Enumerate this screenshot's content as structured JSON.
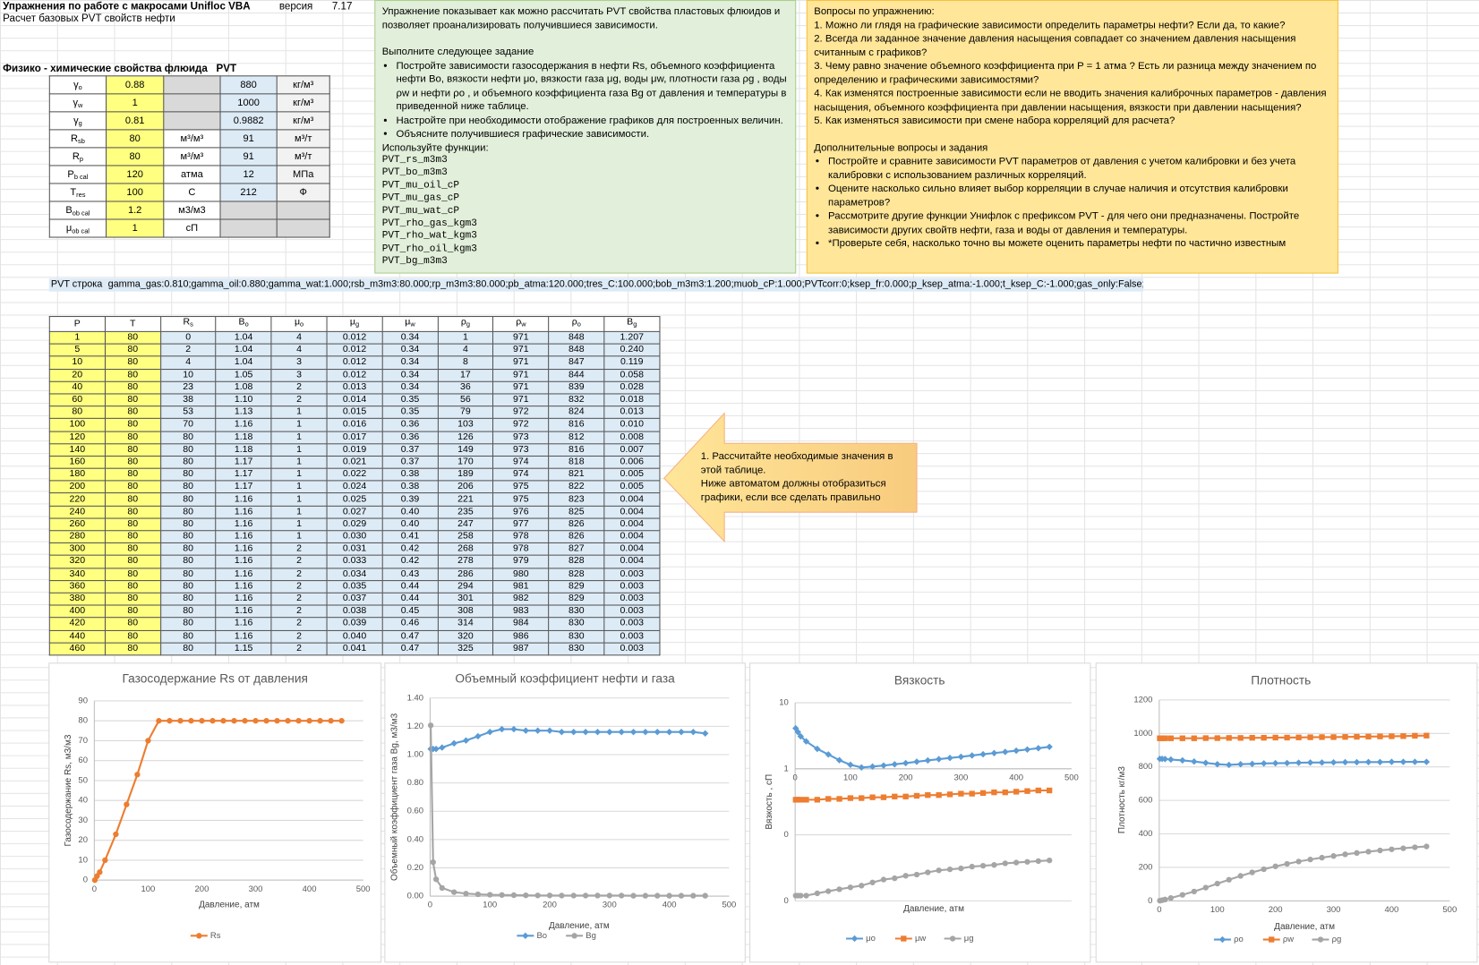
{
  "header": {
    "title": "Упражнения по работе с макросами Unifloc VBA",
    "version_label": "версия",
    "version": "7.17",
    "subtitle": "Расчет базовых PVT свойств нефти"
  },
  "params": {
    "title": "Физико - химические свойства флюида   PVT",
    "rows": [
      {
        "symbol": "γ",
        "sub": "o",
        "value": "0.88",
        "unit": null,
        "value2": "880",
        "unit2": "кг/м³"
      },
      {
        "symbol": "γ",
        "sub": "w",
        "value": "1",
        "unit": null,
        "value2": "1000",
        "unit2": "кг/м³"
      },
      {
        "symbol": "γ",
        "sub": "g",
        "value": "0.81",
        "unit": null,
        "value2": "0.9882",
        "unit2": "кг/м³"
      },
      {
        "symbol": "R",
        "sub": "sb",
        "value": "80",
        "unit": "м³/м³",
        "value2": "91",
        "unit2": "м³/т"
      },
      {
        "symbol": "R",
        "sub": "p",
        "value": "80",
        "unit": "м³/м³",
        "value2": "91",
        "unit2": "м³/т"
      },
      {
        "symbol": "P",
        "sub": "b cal",
        "value": "120",
        "unit": "атма",
        "value2": "12",
        "unit2": "МПа"
      },
      {
        "symbol": "T",
        "sub": "res",
        "value": "100",
        "unit": "С",
        "value2": "212",
        "unit2": "Ф"
      },
      {
        "symbol": "B",
        "sub": "ob cal",
        "value": "1.2",
        "unit": "м3/м3",
        "value2": null,
        "unit2": null
      },
      {
        "symbol": "μ",
        "sub": "ob cal",
        "value": "1",
        "unit": "сП",
        "value2": null,
        "unit2": null
      }
    ]
  },
  "task_box": {
    "intro": "Упражнение показывает как можно рассчитать PVT свойства пластовых флюидов и позволяет проанализировать получившиеся зависимости.",
    "task_title": "Выполните следующее задание",
    "bullets": [
      "Постройте зависимости газосодержания в нефти Rs, объемного коэффициента нефти Bo, вязкости нефти μo, вязкости газа μg, воды μw,  плотности газа ρg , воды ρw и нефти ρo ,  и объемного коэффициента газа Bg от давления и температуры в приведенной ниже таблице.",
      "Настройте при необходимости отображение графиков для построенных величин.",
      "Объясните получившиеся графические зависимости."
    ],
    "functions_title": "Используйте функции:",
    "functions": [
      "PVT_rs_m3m3",
      "PVT_bo_m3m3",
      "PVT_mu_oil_cP",
      "PVT_mu_gas_cP",
      "PVT_mu_wat_cP",
      "PVT_rho_gas_kgm3",
      "PVT_rho_wat_kgm3",
      "PVT_rho_oil_kgm3",
      "PVT_bg_m3m3"
    ]
  },
  "questions_box": {
    "title": "Вопросы по упражнению:",
    "questions": [
      "1. Можно ли глядя на графические зависимости определить параметры нефти? Если да, то какие?",
      "2. Всегда ли заданное значение давления насыщения совпадает со значением давления насыщения считанным с графиков?",
      "3. Чему равно значение объемного коэффициента при P = 1 атма ? Есть ли разница между значением по определению и графическими зависимостями?",
      "4. Как изменятся построенные зависимости если не вводить значения калиброчных параметров - давления насыщения, объемного коэффициента при давлении насыщения, вязкости при давлении насыщения?",
      "5. Как изменяться зависимости при смене набора корреляций для расчета?"
    ],
    "extra_title": "Дополнительные вопросы и задания",
    "extra": [
      "Постройте и сравните зависимости PVT параметров от давления с учетом калибровки и без учета калибровки с использованием различных корреляций.",
      "Оцените насколько сильно влияет выбор корреляции в случае наличия и отсутствия калибровки параметров?",
      "Рассмотрите другие функции Унифлок с префиксом PVT - для чего они предназначены. Постройте зависимости других свойтв нефти, газа и воды от давления и температуры.",
      "*Проверьте себя, насколько точно вы можете оценить параметры нефти по частично известным"
    ]
  },
  "pvt_string": {
    "label": "PVT строка",
    "value": "gamma_gas:0.810;gamma_oil:0.880;gamma_wat:1.000;rsb_m3m3:80.000;rp_m3m3:80.000;pb_atma:120.000;tres_C:100.000;bob_m3m3:1.200;muob_cP:1.000;PVTcorr:0;ksep_fr:0.000;p_ksep_atma:-1.000;t_ksep_C:-1.000;gas_only:False;"
  },
  "callout": {
    "lines": [
      "1. Рассчитайте необходимые значения в",
      "этой таблице.",
      "Ниже автоматом должны отобразиться",
      "графики, если все сделать правильно"
    ]
  },
  "table": {
    "header": [
      "P",
      "T",
      {
        "symbol": "R",
        "sub": "s"
      },
      {
        "symbol": "B",
        "sub": "o"
      },
      {
        "symbol": "μ",
        "sub": "o"
      },
      {
        "symbol": "μ",
        "sub": "g"
      },
      {
        "symbol": "μ",
        "sub": "w"
      },
      {
        "symbol": "ρ",
        "sub": "g"
      },
      {
        "symbol": "ρ",
        "sub": "w"
      },
      {
        "symbol": "ρ",
        "sub": "o"
      },
      {
        "symbol": "B",
        "sub": "g"
      }
    ],
    "rows": [
      [
        "1",
        "80",
        "0",
        "1.04",
        "4",
        "0.012",
        "0.34",
        "1",
        "971",
        "848",
        "1.207"
      ],
      [
        "5",
        "80",
        "2",
        "1.04",
        "4",
        "0.012",
        "0.34",
        "4",
        "971",
        "848",
        "0.240"
      ],
      [
        "10",
        "80",
        "4",
        "1.04",
        "3",
        "0.012",
        "0.34",
        "8",
        "971",
        "847",
        "0.119"
      ],
      [
        "20",
        "80",
        "10",
        "1.05",
        "3",
        "0.012",
        "0.34",
        "17",
        "971",
        "844",
        "0.058"
      ],
      [
        "40",
        "80",
        "23",
        "1.08",
        "2",
        "0.013",
        "0.34",
        "36",
        "971",
        "839",
        "0.028"
      ],
      [
        "60",
        "80",
        "38",
        "1.10",
        "2",
        "0.014",
        "0.35",
        "56",
        "971",
        "832",
        "0.018"
      ],
      [
        "80",
        "80",
        "53",
        "1.13",
        "1",
        "0.015",
        "0.35",
        "79",
        "972",
        "824",
        "0.013"
      ],
      [
        "100",
        "80",
        "70",
        "1.16",
        "1",
        "0.016",
        "0.36",
        "103",
        "972",
        "816",
        "0.010"
      ],
      [
        "120",
        "80",
        "80",
        "1.18",
        "1",
        "0.017",
        "0.36",
        "126",
        "973",
        "812",
        "0.008"
      ],
      [
        "140",
        "80",
        "80",
        "1.18",
        "1",
        "0.019",
        "0.37",
        "149",
        "973",
        "816",
        "0.007"
      ],
      [
        "160",
        "80",
        "80",
        "1.17",
        "1",
        "0.021",
        "0.37",
        "170",
        "974",
        "818",
        "0.006"
      ],
      [
        "180",
        "80",
        "80",
        "1.17",
        "1",
        "0.022",
        "0.38",
        "189",
        "974",
        "821",
        "0.005"
      ],
      [
        "200",
        "80",
        "80",
        "1.17",
        "1",
        "0.024",
        "0.38",
        "206",
        "975",
        "822",
        "0.005"
      ],
      [
        "220",
        "80",
        "80",
        "1.16",
        "1",
        "0.025",
        "0.39",
        "221",
        "975",
        "823",
        "0.004"
      ],
      [
        "240",
        "80",
        "80",
        "1.16",
        "1",
        "0.027",
        "0.40",
        "235",
        "976",
        "825",
        "0.004"
      ],
      [
        "260",
        "80",
        "80",
        "1.16",
        "1",
        "0.029",
        "0.40",
        "247",
        "977",
        "826",
        "0.004"
      ],
      [
        "280",
        "80",
        "80",
        "1.16",
        "1",
        "0.030",
        "0.41",
        "258",
        "978",
        "826",
        "0.004"
      ],
      [
        "300",
        "80",
        "80",
        "1.16",
        "2",
        "0.031",
        "0.42",
        "268",
        "978",
        "827",
        "0.004"
      ],
      [
        "320",
        "80",
        "80",
        "1.16",
        "2",
        "0.033",
        "0.42",
        "278",
        "979",
        "828",
        "0.004"
      ],
      [
        "340",
        "80",
        "80",
        "1.16",
        "2",
        "0.034",
        "0.43",
        "286",
        "980",
        "828",
        "0.003"
      ],
      [
        "360",
        "80",
        "80",
        "1.16",
        "2",
        "0.035",
        "0.44",
        "294",
        "981",
        "829",
        "0.003"
      ],
      [
        "380",
        "80",
        "80",
        "1.16",
        "2",
        "0.037",
        "0.44",
        "301",
        "982",
        "829",
        "0.003"
      ],
      [
        "400",
        "80",
        "80",
        "1.16",
        "2",
        "0.038",
        "0.45",
        "308",
        "983",
        "830",
        "0.003"
      ],
      [
        "420",
        "80",
        "80",
        "1.16",
        "2",
        "0.039",
        "0.46",
        "314",
        "984",
        "830",
        "0.003"
      ],
      [
        "440",
        "80",
        "80",
        "1.16",
        "2",
        "0.040",
        "0.47",
        "320",
        "986",
        "830",
        "0.003"
      ],
      [
        "460",
        "80",
        "80",
        "1.15",
        "2",
        "0.041",
        "0.47",
        "325",
        "987",
        "830",
        "0.003"
      ]
    ]
  },
  "chart_data": [
    {
      "type": "line",
      "title": "Газосодержание Rs от давления",
      "x_label": "Давление, атм",
      "y_label": "Газосодержание Rs, м3/м3",
      "grid": true,
      "x": [
        1,
        5,
        10,
        20,
        40,
        60,
        80,
        100,
        120,
        140,
        160,
        180,
        200,
        220,
        240,
        260,
        280,
        300,
        320,
        340,
        360,
        380,
        400,
        420,
        440,
        460
      ],
      "xlim": [
        0,
        500
      ],
      "xticks": [
        0,
        100,
        200,
        300,
        400,
        500
      ],
      "ylim": [
        0,
        90
      ],
      "yticks": [
        0,
        10,
        20,
        30,
        40,
        50,
        60,
        70,
        80,
        90
      ],
      "series": [
        {
          "name": "Rs",
          "color": "#ed7d31",
          "marker": "circle",
          "values": [
            0,
            2,
            4,
            10,
            23,
            38,
            53,
            70,
            80,
            80,
            80,
            80,
            80,
            80,
            80,
            80,
            80,
            80,
            80,
            80,
            80,
            80,
            80,
            80,
            80,
            80
          ]
        }
      ]
    },
    {
      "type": "line",
      "title": "Объемный коэффициент нефти и газа",
      "x_label": "Давление, атм",
      "y_label": "Объемный коэффициент газа Bg, м3/м3",
      "grid": true,
      "x": [
        1,
        5,
        10,
        20,
        40,
        60,
        80,
        100,
        120,
        140,
        160,
        180,
        200,
        220,
        240,
        260,
        280,
        300,
        320,
        340,
        360,
        380,
        400,
        420,
        440,
        460
      ],
      "xlim": [
        0,
        500
      ],
      "xticks": [
        0,
        100,
        200,
        300,
        400,
        500
      ],
      "ylim": [
        0,
        1.4
      ],
      "yticks": [
        {
          "value": 0,
          "label": "0.00"
        },
        {
          "value": 0.2,
          "label": "0.20"
        },
        {
          "value": 0.4,
          "label": "0.40"
        },
        {
          "value": 0.6,
          "label": "0.60"
        },
        {
          "value": 0.8,
          "label": "0.80"
        },
        {
          "value": 1,
          "label": "1.00"
        },
        {
          "value": 1.2,
          "label": "1.20"
        },
        {
          "value": 1.4,
          "label": "1.40"
        }
      ],
      "series": [
        {
          "name": "Bo",
          "color": "#5b9bd5",
          "marker": "diamond",
          "values": [
            1.04,
            1.04,
            1.04,
            1.05,
            1.08,
            1.1,
            1.13,
            1.16,
            1.18,
            1.18,
            1.17,
            1.17,
            1.17,
            1.16,
            1.16,
            1.16,
            1.16,
            1.16,
            1.16,
            1.16,
            1.16,
            1.16,
            1.16,
            1.16,
            1.16,
            1.15
          ]
        },
        {
          "name": "Bg",
          "color": "#a5a5a5",
          "marker": "circle",
          "values": [
            1.207,
            0.24,
            0.119,
            0.058,
            0.028,
            0.018,
            0.013,
            0.01,
            0.008,
            0.007,
            0.006,
            0.005,
            0.005,
            0.004,
            0.004,
            0.004,
            0.004,
            0.004,
            0.004,
            0.003,
            0.003,
            0.003,
            0.003,
            0.003,
            0.003,
            0.003
          ]
        }
      ]
    },
    {
      "type": "line",
      "title": "Вязкость",
      "x_label": "Давление, атм",
      "y_label": "Вязкость , сП",
      "grid": true,
      "log_y": true,
      "x_axis_crosses": 1,
      "x": [
        1,
        5,
        10,
        20,
        40,
        60,
        80,
        100,
        120,
        140,
        160,
        180,
        200,
        220,
        240,
        260,
        280,
        300,
        320,
        340,
        360,
        380,
        400,
        420,
        440,
        460
      ],
      "xlim": [
        0,
        500
      ],
      "xticks": [
        0,
        100,
        200,
        300,
        400,
        500
      ],
      "ylim": [
        0.01,
        10
      ],
      "yticks": [
        10,
        1,
        {
          "value": 0.1,
          "label": "0"
        },
        {
          "value": 0.01,
          "label": "0"
        }
      ],
      "series": [
        {
          "name": "μo",
          "color": "#5b9bd5",
          "marker": "diamond",
          "values": [
            4.1,
            3.6,
            3.1,
            2.6,
            2.0,
            1.65,
            1.35,
            1.15,
            1.05,
            1.08,
            1.12,
            1.17,
            1.22,
            1.28,
            1.34,
            1.4,
            1.46,
            1.52,
            1.59,
            1.66,
            1.73,
            1.8,
            1.88,
            1.96,
            2.05,
            2.15
          ]
        },
        {
          "name": "μw",
          "color": "#ed7d31",
          "marker": "square",
          "values": [
            0.34,
            0.34,
            0.34,
            0.34,
            0.34,
            0.35,
            0.35,
            0.36,
            0.36,
            0.37,
            0.37,
            0.38,
            0.38,
            0.39,
            0.4,
            0.4,
            0.41,
            0.42,
            0.42,
            0.43,
            0.44,
            0.44,
            0.45,
            0.46,
            0.47,
            0.47
          ]
        },
        {
          "name": "μg",
          "color": "#a5a5a5",
          "marker": "circle",
          "values": [
            0.012,
            0.012,
            0.012,
            0.012,
            0.013,
            0.014,
            0.015,
            0.016,
            0.017,
            0.019,
            0.021,
            0.022,
            0.024,
            0.025,
            0.027,
            0.029,
            0.03,
            0.031,
            0.033,
            0.034,
            0.035,
            0.037,
            0.038,
            0.039,
            0.04,
            0.041
          ]
        }
      ]
    },
    {
      "type": "line",
      "title": "Плотность",
      "x_label": "Давление, атм",
      "y_label": "Плотность кг/м3",
      "grid": true,
      "x": [
        1,
        5,
        10,
        20,
        40,
        60,
        80,
        100,
        120,
        140,
        160,
        180,
        200,
        220,
        240,
        260,
        280,
        300,
        320,
        340,
        360,
        380,
        400,
        420,
        440,
        460
      ],
      "xlim": [
        0,
        500
      ],
      "xticks": [
        0,
        100,
        200,
        300,
        400,
        500
      ],
      "ylim": [
        0,
        1200
      ],
      "yticks": [
        0,
        200,
        400,
        600,
        800,
        1000,
        1200
      ],
      "series": [
        {
          "name": "ρo",
          "color": "#5b9bd5",
          "marker": "diamond",
          "values": [
            848,
            848,
            847,
            844,
            839,
            832,
            824,
            816,
            812,
            816,
            818,
            821,
            822,
            823,
            825,
            826,
            826,
            827,
            828,
            828,
            829,
            829,
            830,
            830,
            830,
            830
          ]
        },
        {
          "name": "ρw",
          "color": "#ed7d31",
          "marker": "square",
          "values": [
            971,
            971,
            971,
            971,
            971,
            971,
            972,
            972,
            973,
            973,
            974,
            974,
            975,
            975,
            976,
            977,
            978,
            978,
            979,
            980,
            981,
            982,
            983,
            984,
            986,
            987
          ]
        },
        {
          "name": "ρg",
          "color": "#a5a5a5",
          "marker": "circle",
          "values": [
            1,
            4,
            8,
            17,
            36,
            56,
            79,
            103,
            126,
            149,
            170,
            189,
            206,
            221,
            235,
            247,
            258,
            268,
            278,
            286,
            294,
            301,
            308,
            314,
            320,
            325
          ]
        }
      ]
    }
  ]
}
